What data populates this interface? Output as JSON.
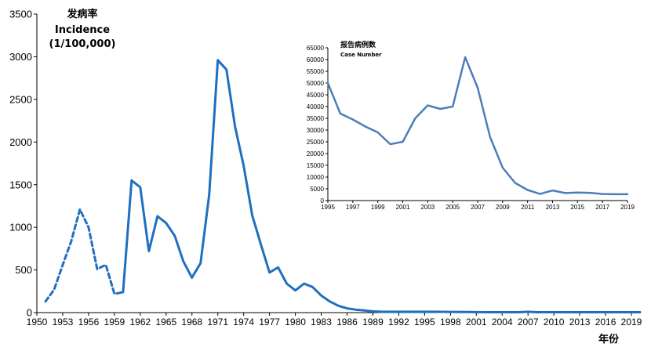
{
  "chart_data": [
    {
      "type": "line",
      "ylabel_lines": [
        "发病率",
        "Incidence",
        "(1/100,000)"
      ],
      "xlabel": "年份",
      "xlim": [
        1950,
        2020
      ],
      "ylim": [
        0,
        3500
      ],
      "yticks": [
        0,
        500,
        1000,
        1500,
        2000,
        2500,
        3000,
        3500
      ],
      "xticks": [
        1950,
        1953,
        1956,
        1959,
        1962,
        1965,
        1968,
        1971,
        1974,
        1977,
        1980,
        1983,
        1986,
        1989,
        1992,
        1995,
        1998,
        2001,
        2004,
        2007,
        2010,
        2013,
        2016,
        2019
      ],
      "grid": false,
      "legend": "none",
      "color": "#1f6fc0",
      "series": [
        {
          "style": "dashed",
          "x": [
            1951,
            1952,
            1953,
            1954,
            1955,
            1956,
            1957,
            1958,
            1959,
            1960
          ],
          "y": [
            130,
            270,
            560,
            840,
            1210,
            1000,
            510,
            560,
            220,
            240
          ]
        },
        {
          "style": "solid",
          "x": [
            1960,
            1961,
            1962,
            1963,
            1964,
            1965,
            1966,
            1967,
            1968,
            1969,
            1970,
            1971,
            1972,
            1973,
            1974,
            1975,
            1976,
            1977,
            1978,
            1979,
            1980,
            1981,
            1982,
            1983,
            1984,
            1985,
            1986,
            1987,
            1988,
            1989,
            1990,
            1992,
            1994,
            1996,
            1998,
            2000,
            2002,
            2004,
            2006,
            2007,
            2008,
            2010,
            2012,
            2014,
            2016,
            2018,
            2020
          ],
          "y": [
            240,
            1550,
            1470,
            720,
            1130,
            1050,
            900,
            600,
            410,
            580,
            1380,
            2960,
            2850,
            2180,
            1720,
            1140,
            800,
            470,
            530,
            340,
            260,
            340,
            300,
            200,
            130,
            80,
            50,
            35,
            25,
            15,
            10,
            10,
            10,
            10,
            8,
            6,
            5,
            5,
            5,
            10,
            5,
            5,
            5,
            5,
            5,
            5,
            5
          ]
        }
      ]
    },
    {
      "type": "line",
      "title_cn": "报告病例数",
      "title_en": "Case Number",
      "xlim": [
        1995,
        2019
      ],
      "ylim": [
        0,
        65000
      ],
      "yticks": [
        0,
        5000,
        10000,
        15000,
        20000,
        25000,
        30000,
        35000,
        40000,
        45000,
        50000,
        55000,
        60000,
        65000
      ],
      "xticks": [
        1995,
        1997,
        1999,
        2001,
        2003,
        2005,
        2007,
        2009,
        2011,
        2013,
        2015,
        2017,
        2019
      ],
      "grid": false,
      "legend": "none",
      "color": "#4a7ebb",
      "series": [
        {
          "x": [
            1995,
            1996,
            1997,
            1998,
            1999,
            2000,
            2001,
            2002,
            2003,
            2004,
            2005,
            2006,
            2007,
            2008,
            2009,
            2010,
            2011,
            2012,
            2013,
            2014,
            2015,
            2016,
            2017,
            2018,
            2019
          ],
          "y": [
            50000,
            37000,
            34500,
            31500,
            29000,
            24000,
            25000,
            35000,
            40500,
            39000,
            40000,
            61000,
            48000,
            27000,
            14000,
            7500,
            4500,
            2800,
            4300,
            3200,
            3400,
            3300,
            2800,
            2700,
            2700
          ]
        }
      ]
    }
  ]
}
